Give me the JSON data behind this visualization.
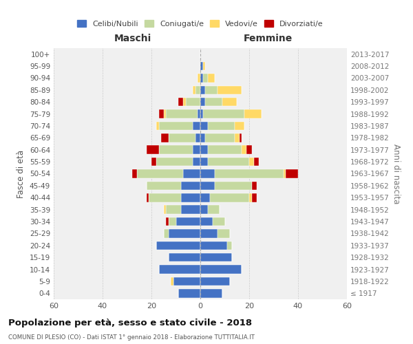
{
  "age_groups": [
    "100+",
    "95-99",
    "90-94",
    "85-89",
    "80-84",
    "75-79",
    "70-74",
    "65-69",
    "60-64",
    "55-59",
    "50-54",
    "45-49",
    "40-44",
    "35-39",
    "30-34",
    "25-29",
    "20-24",
    "15-19",
    "10-14",
    "5-9",
    "0-4"
  ],
  "birth_years": [
    "≤ 1917",
    "1918-1922",
    "1923-1927",
    "1928-1932",
    "1933-1937",
    "1938-1942",
    "1943-1947",
    "1948-1952",
    "1953-1957",
    "1958-1962",
    "1963-1967",
    "1968-1972",
    "1973-1977",
    "1978-1982",
    "1983-1987",
    "1988-1992",
    "1993-1997",
    "1998-2002",
    "2003-2007",
    "2008-2012",
    "2013-2017"
  ],
  "colors": {
    "celibi": "#4472C4",
    "coniugati": "#c5d9a0",
    "vedovi": "#FFD966",
    "divorziati": "#C00000"
  },
  "maschi": {
    "celibi": [
      0,
      0,
      0,
      0,
      0,
      1,
      3,
      2,
      3,
      3,
      7,
      8,
      8,
      8,
      10,
      13,
      18,
      13,
      17,
      11,
      9
    ],
    "coniugati": [
      0,
      0,
      0,
      2,
      6,
      13,
      14,
      11,
      14,
      15,
      19,
      14,
      13,
      6,
      3,
      2,
      0,
      0,
      0,
      0,
      0
    ],
    "vedovi": [
      0,
      0,
      1,
      1,
      1,
      1,
      1,
      0,
      0,
      0,
      0,
      0,
      0,
      1,
      0,
      0,
      0,
      0,
      0,
      1,
      0
    ],
    "divorziati": [
      0,
      0,
      0,
      0,
      2,
      2,
      0,
      3,
      5,
      2,
      2,
      0,
      1,
      0,
      1,
      0,
      0,
      0,
      0,
      0,
      0
    ]
  },
  "femmine": {
    "celibi": [
      0,
      1,
      1,
      2,
      2,
      1,
      3,
      2,
      3,
      3,
      6,
      6,
      4,
      3,
      5,
      7,
      11,
      13,
      17,
      12,
      9
    ],
    "coniugati": [
      0,
      0,
      2,
      5,
      7,
      17,
      11,
      12,
      14,
      17,
      28,
      15,
      16,
      5,
      5,
      5,
      2,
      0,
      0,
      0,
      0
    ],
    "vedovi": [
      0,
      1,
      3,
      10,
      6,
      7,
      4,
      2,
      2,
      2,
      1,
      0,
      1,
      0,
      0,
      0,
      0,
      0,
      0,
      0,
      0
    ],
    "divorziati": [
      0,
      0,
      0,
      0,
      0,
      0,
      0,
      1,
      2,
      2,
      5,
      2,
      2,
      0,
      0,
      0,
      0,
      0,
      0,
      0,
      0
    ]
  },
  "xlim": 60,
  "title": "Popolazione per età, sesso e stato civile - 2018",
  "subtitle": "COMUNE DI PLESIO (CO) - Dati ISTAT 1° gennaio 2018 - Elaborazione TUTTITALIA.IT",
  "xlabel_left": "Maschi",
  "xlabel_right": "Femmine",
  "ylabel": "Fasce di età",
  "ylabel_right": "Anni di nascita",
  "legend_labels": [
    "Celibi/Nubili",
    "Coniugati/e",
    "Vedovi/e",
    "Divorziati/e"
  ],
  "bg_color": "#ffffff",
  "plot_bg": "#f0f0f0",
  "grid_color": "#cccccc"
}
